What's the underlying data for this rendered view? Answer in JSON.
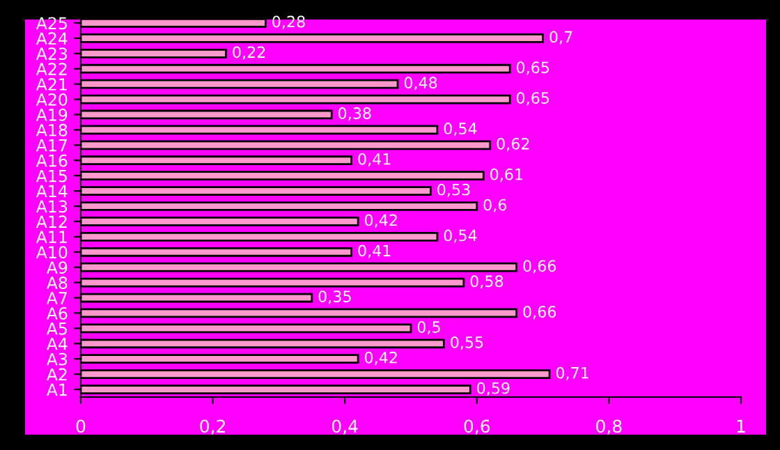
{
  "chart_data": {
    "type": "bar",
    "orientation": "horizontal",
    "categories": [
      "A25",
      "A24",
      "A23",
      "A22",
      "A21",
      "A20",
      "A19",
      "A18",
      "A17",
      "A16",
      "A15",
      "A14",
      "A13",
      "A12",
      "A11",
      "A10",
      "A9",
      "A8",
      "A7",
      "A6",
      "A5",
      "A4",
      "A3",
      "A2",
      "A1"
    ],
    "values": [
      0.28,
      0.7,
      0.22,
      0.65,
      0.48,
      0.65,
      0.38,
      0.54,
      0.62,
      0.41,
      0.61,
      0.53,
      0.6,
      0.42,
      0.54,
      0.41,
      0.66,
      0.58,
      0.35,
      0.66,
      0.5,
      0.55,
      0.42,
      0.71,
      0.59
    ],
    "value_labels": [
      "0,28",
      "0,7",
      "0,22",
      "0,65",
      "0,48",
      "0,65",
      "0,38",
      "0,54",
      "0,62",
      "0,41",
      "0,61",
      "0,53",
      "0,6",
      "0,42",
      "0,54",
      "0,41",
      "0,66",
      "0,58",
      "0,35",
      "0,66",
      "0,5",
      "0,55",
      "0,42",
      "0,71",
      "0,59"
    ],
    "color": "#ff99cc",
    "xlim": [
      0,
      1
    ],
    "xticks": [
      0,
      {
        "value": 0.2,
        "label": "0,2"
      },
      {
        "value": 0.4,
        "label": "0,4"
      },
      {
        "value": 0.6,
        "label": "0,6"
      },
      {
        "value": 0.8,
        "label": "0,8"
      },
      1
    ],
    "grid": false,
    "legend": false
  }
}
